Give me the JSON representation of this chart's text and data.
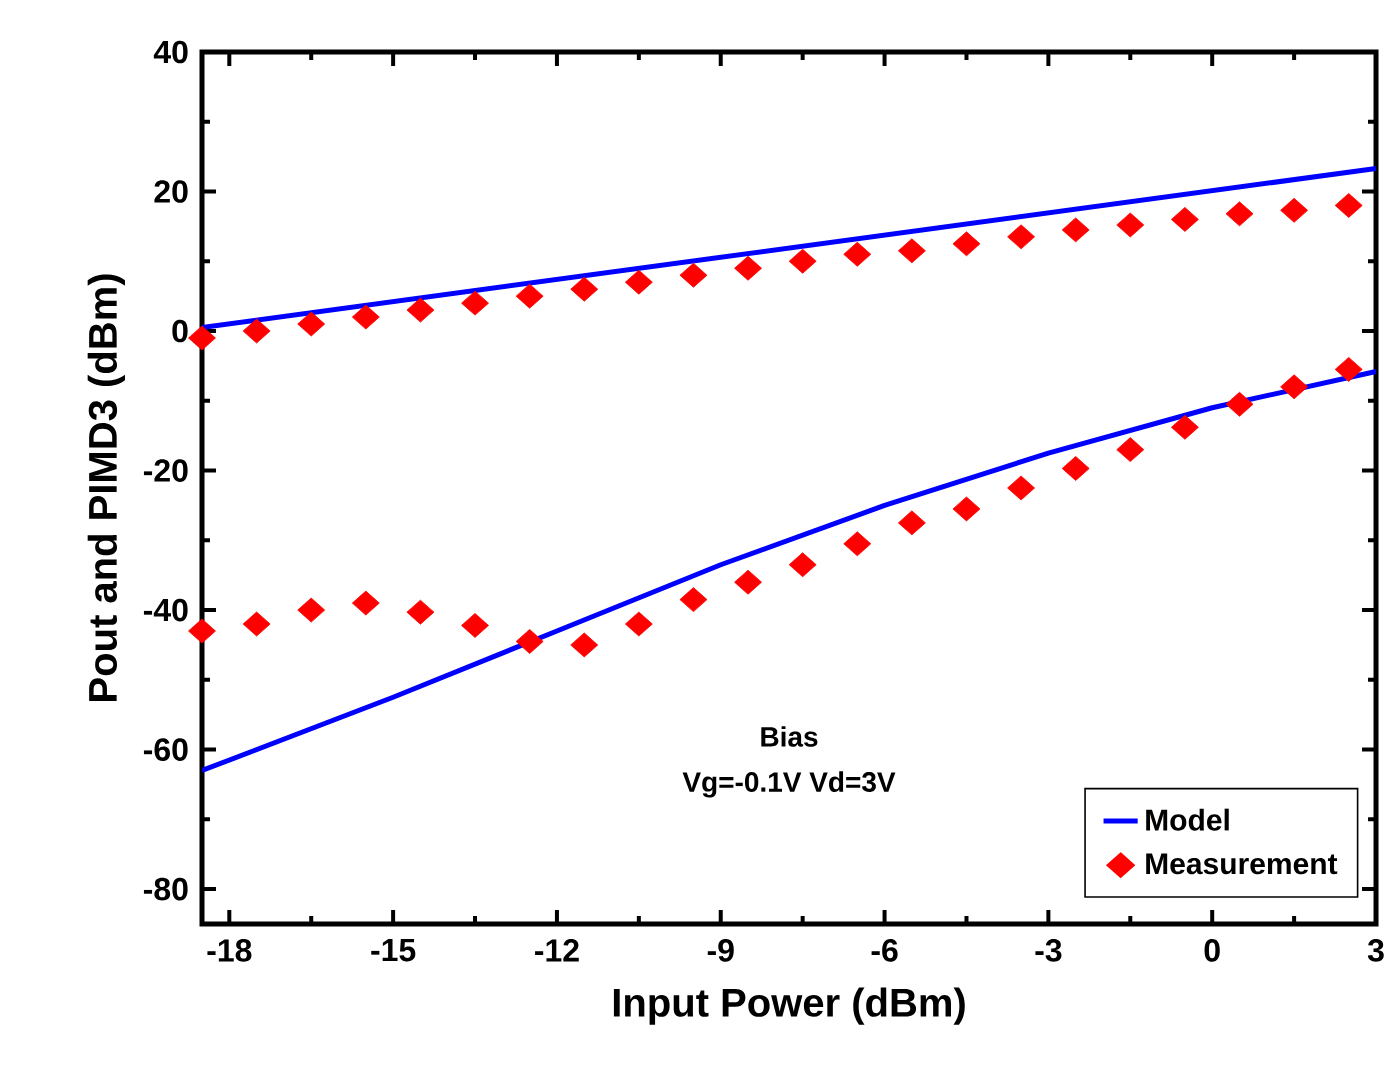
{
  "chart_data": {
    "type": "line",
    "xlabel": "Input Power (dBm)",
    "ylabel": "Pout and PIMD3 (dBm)",
    "xlim": [
      -18.5,
      3
    ],
    "ylim": [
      -85,
      40
    ],
    "xticks": [
      -18,
      -15,
      -12,
      -9,
      -6,
      -3,
      0,
      3
    ],
    "yticks": [
      -80,
      -60,
      -40,
      -20,
      0,
      20,
      40
    ],
    "grid": false,
    "legend": "bottom right",
    "annotations": [
      "Bias",
      "Vg=-0.1V  Vd=3V"
    ],
    "series": [
      {
        "name": "Model",
        "color": "#0000ff",
        "line_style": "solid",
        "marker": "none",
        "x": [
          -18.5,
          3
        ],
        "values": [
          0.5,
          23.3
        ]
      },
      {
        "color": "#0000ff",
        "line_style": "solid",
        "marker": "none",
        "x": [
          -18.5,
          -15,
          -12,
          -9,
          -6,
          -3,
          0,
          3
        ],
        "values": [
          -63,
          -52.5,
          -43,
          -33.5,
          -25,
          -17.5,
          -11,
          -5.8
        ]
      },
      {
        "name": "Measurement",
        "type": "scatter",
        "color": "#ff0000",
        "marker": "diamond",
        "x": [
          -18.5,
          -17.5,
          -16.5,
          -15.5,
          -14.5,
          -13.5,
          -12.5,
          -11.5,
          -10.5,
          -9.5,
          -8.5,
          -7.5,
          -6.5,
          -5.5,
          -4.5,
          -3.5,
          -2.5,
          -1.5,
          -0.5,
          0.5,
          1.5,
          2.5
        ],
        "values": [
          -1,
          0,
          1,
          2,
          3,
          4,
          5,
          6,
          7,
          8,
          9,
          10,
          11,
          11.5,
          12.5,
          13.5,
          14.5,
          15.2,
          16,
          16.8,
          17.3,
          18
        ]
      },
      {
        "type": "scatter",
        "color": "#ff0000",
        "marker": "diamond",
        "x": [
          -18.5,
          -17.5,
          -16.5,
          -15.5,
          -14.5,
          -13.5,
          -12.5,
          -11.5,
          -10.5,
          -9.5,
          -8.5,
          -7.5,
          -6.5,
          -5.5,
          -4.5,
          -3.5,
          -2.5,
          -1.5,
          -0.5,
          0.5,
          1.5,
          2.5
        ],
        "values": [
          -43,
          -42,
          -40,
          -39,
          -40.3,
          -42.2,
          -44.5,
          -45,
          -42,
          -38.5,
          -36,
          -33.5,
          -30.5,
          -27.5,
          -25.5,
          -22.5,
          -19.7,
          -17,
          -13.8,
          -10.5,
          -8,
          -5.5
        ]
      }
    ]
  }
}
